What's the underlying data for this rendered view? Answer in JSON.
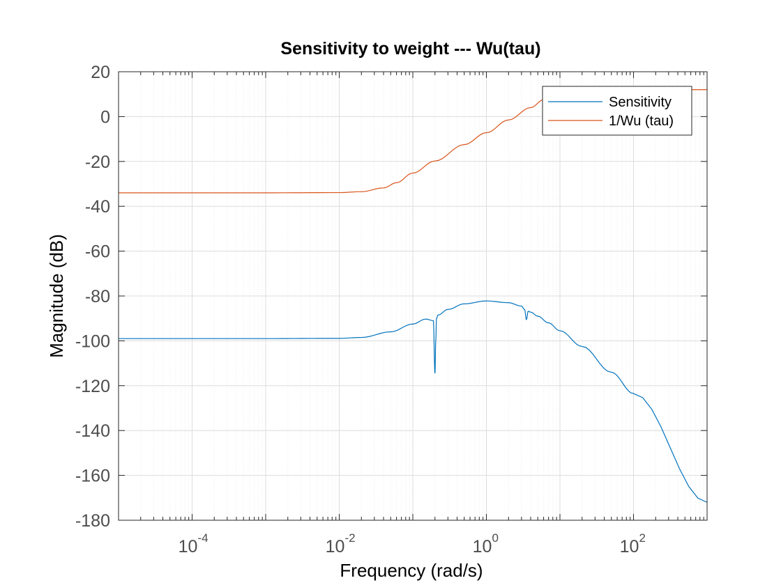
{
  "chart_data": {
    "type": "line",
    "title": "Sensitivity to weight --- Wu(tau)",
    "xlabel": "Frequency  (rad/s)",
    "ylabel": "Magnitude (dB)",
    "xscale": "log",
    "xlim": [
      1e-05,
      1000
    ],
    "ylim": [
      -180,
      20
    ],
    "xticks": [
      {
        "value": 0.0001,
        "base": "10",
        "exp": "-4"
      },
      {
        "value": 0.01,
        "base": "10",
        "exp": "-2"
      },
      {
        "value": 1,
        "base": "10",
        "exp": "0"
      },
      {
        "value": 100,
        "base": "10",
        "exp": "2"
      }
    ],
    "yticks": [
      20,
      0,
      -20,
      -40,
      -60,
      -80,
      -100,
      -120,
      -140,
      -160,
      -180
    ],
    "grid": true,
    "legend_position": "top-right",
    "series": [
      {
        "name": "Sensitivity",
        "color": "#0072bd",
        "x": [
          1e-05,
          0.001,
          0.01,
          0.02,
          0.05,
          0.1,
          0.15,
          0.19,
          0.2,
          0.205,
          0.21,
          0.22,
          0.3,
          0.5,
          1,
          2,
          3,
          3.3,
          3.5,
          3.7,
          4,
          5,
          7,
          10,
          20,
          50,
          100,
          1000
        ],
        "y": [
          -99,
          -99,
          -98.9,
          -98.5,
          -96,
          -92.5,
          -90.3,
          -91,
          -114.5,
          -100,
          -90,
          -88.5,
          -86,
          -83.5,
          -82.2,
          -83,
          -84.5,
          -86,
          -90.5,
          -86.8,
          -87.2,
          -89,
          -92,
          -95.5,
          -102.5,
          -114,
          -123.5,
          -172
        ]
      },
      {
        "name": "1/Wu (tau)",
        "color": "#d95319",
        "x": [
          1e-05,
          0.001,
          0.01,
          0.02,
          0.04,
          0.06,
          0.1,
          0.2,
          0.5,
          1,
          2,
          4,
          6,
          10,
          20,
          50,
          1000
        ],
        "y": [
          -34,
          -34,
          -33.9,
          -33.5,
          -31.8,
          -29.5,
          -25.2,
          -19.8,
          -12.5,
          -7.2,
          -1.5,
          4,
          7.5,
          10,
          11.5,
          12,
          12
        ]
      }
    ]
  }
}
